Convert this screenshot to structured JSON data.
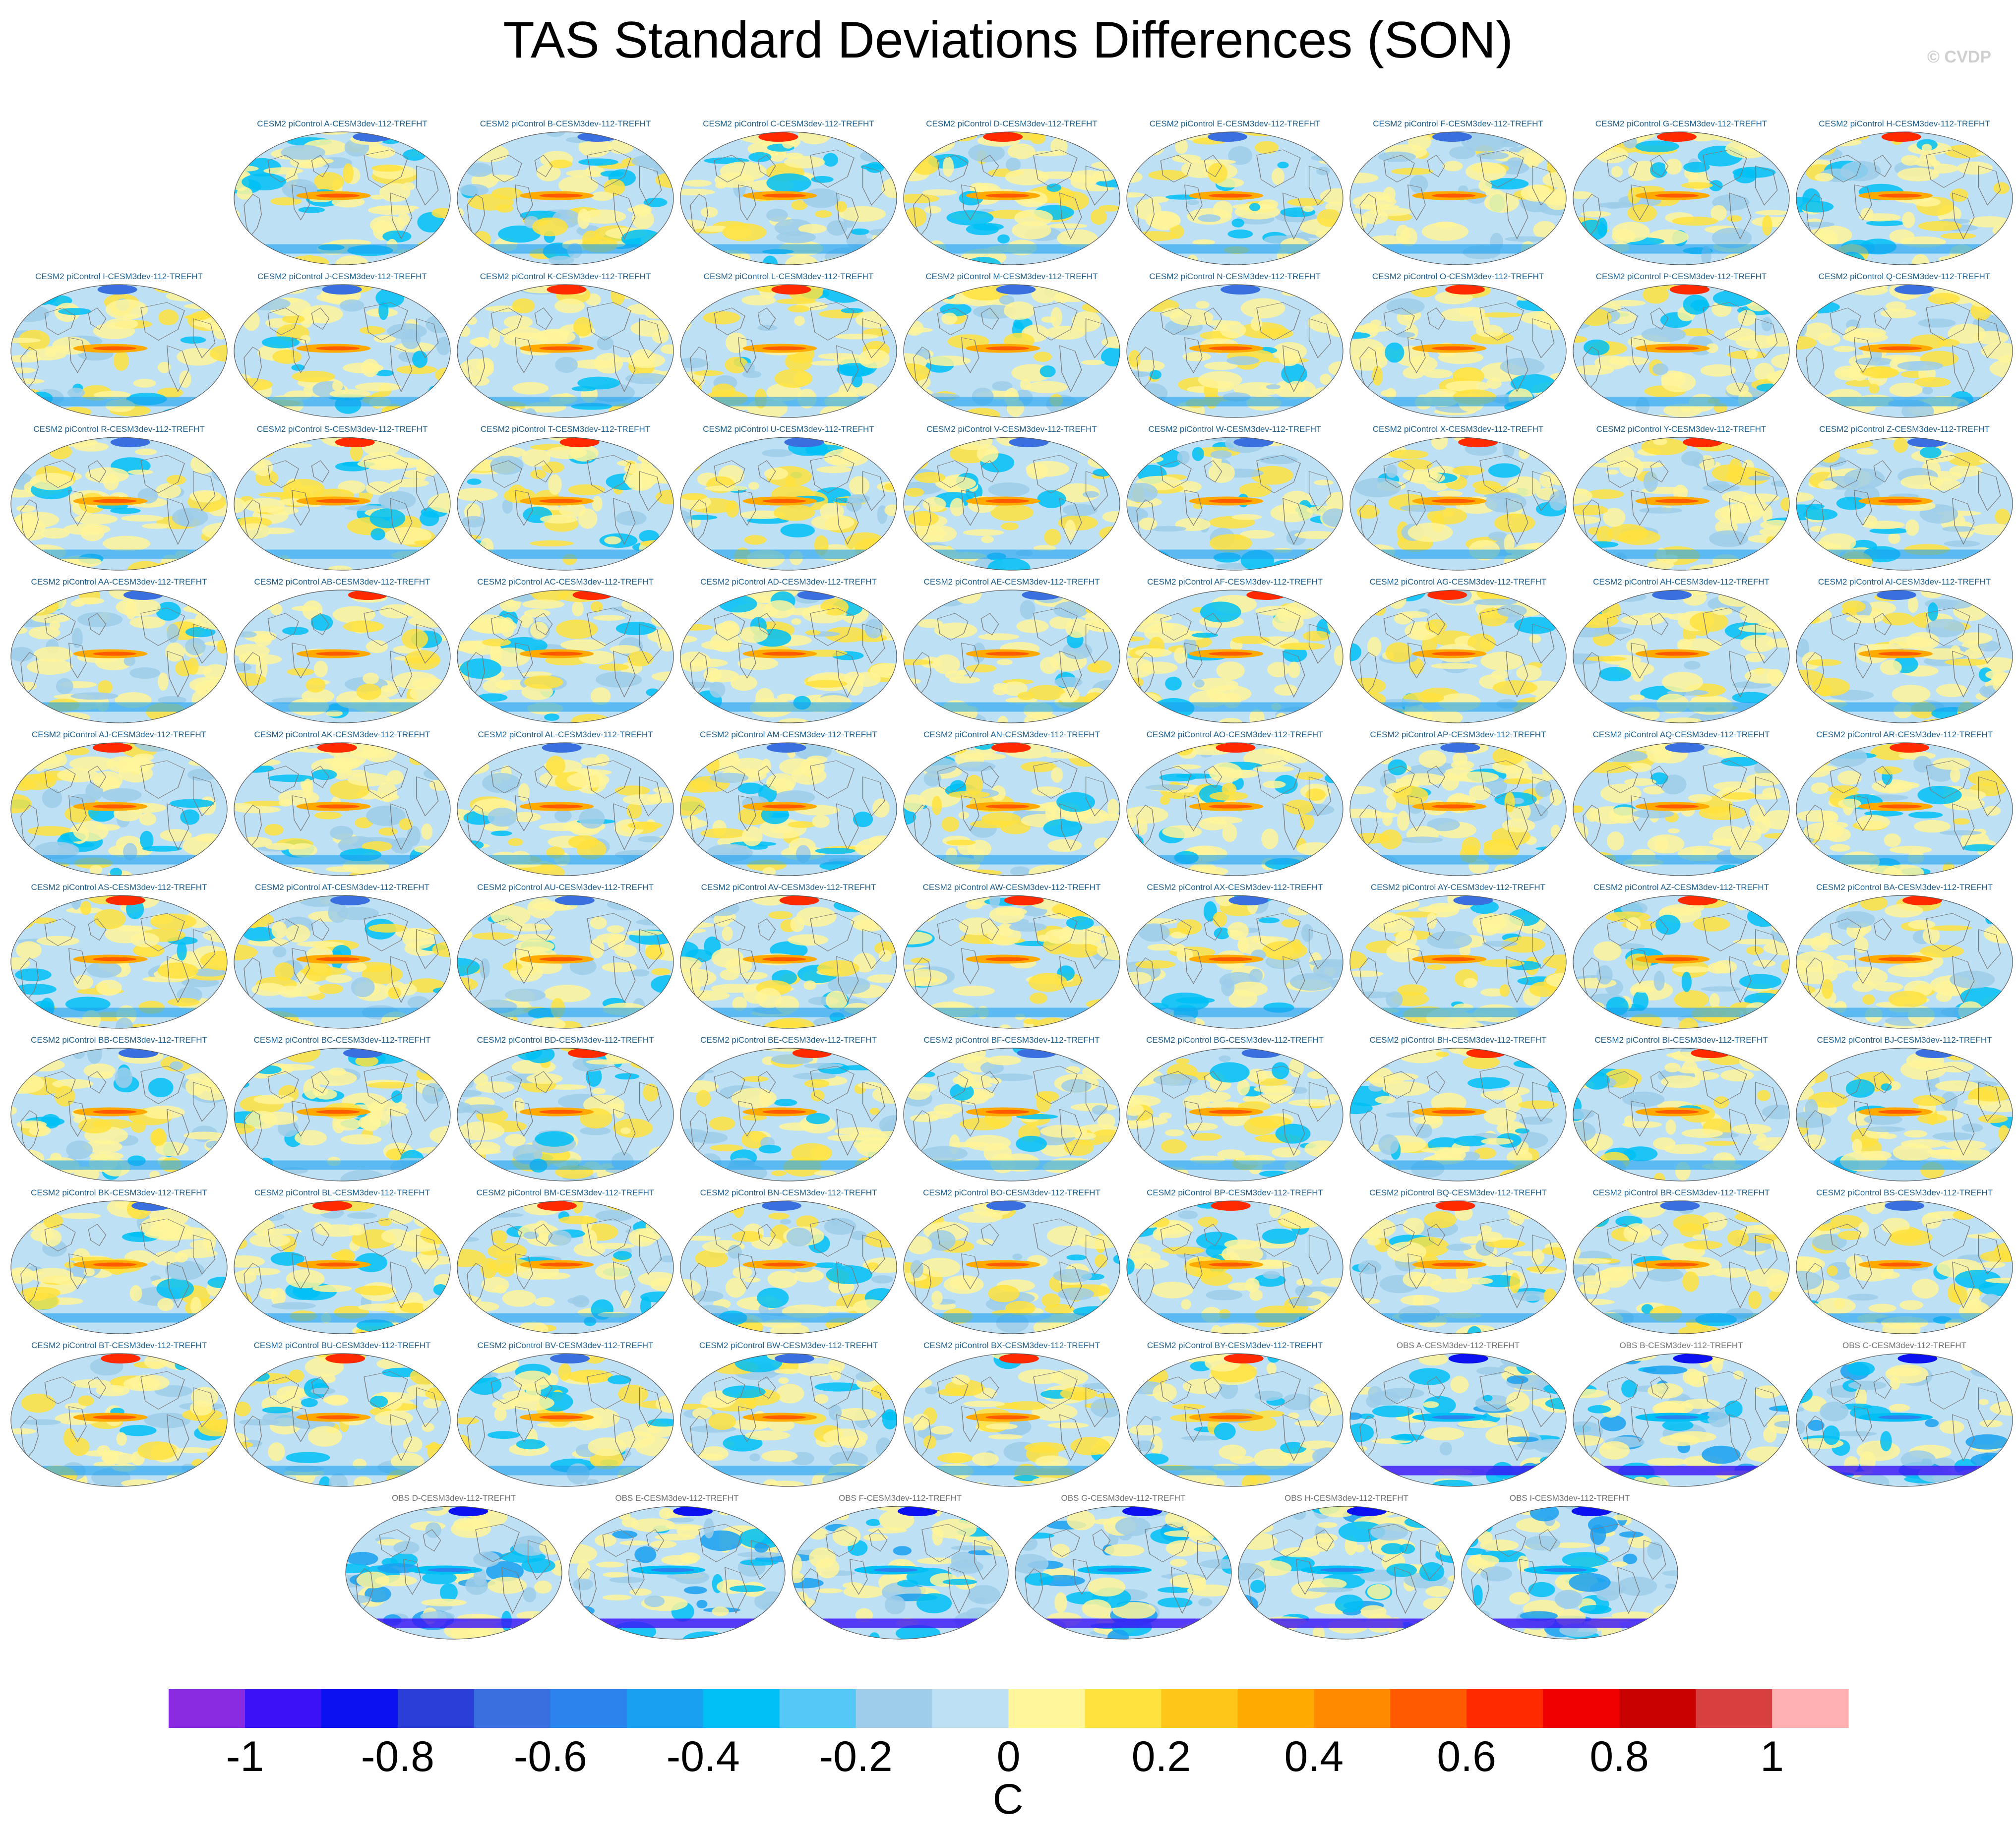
{
  "title": "TAS Standard Deviations Differences (SON)",
  "copyright": "© CVDP",
  "colors": {
    "land_outline": "#7a7a7a",
    "map_border": "#555555",
    "palette": [
      "#8a2be2",
      "#3a12f5",
      "#0a10f0",
      "#2a3fd8",
      "#3a6fe0",
      "#2b84ee",
      "#1aa0f0",
      "#00bff5",
      "#55c7f5",
      "#9dcde9",
      "#bde0f5",
      "#fff59a",
      "#ffe23d",
      "#ffc61a",
      "#ffaa00",
      "#ff8a00",
      "#ff5a00",
      "#ff2a00",
      "#f00000",
      "#c80000",
      "#d84040",
      "#ffb0b0"
    ]
  },
  "chart_data": {
    "type": "map_grid",
    "title": "TAS Standard Deviations Differences (SON)",
    "variable": "TAS",
    "season": "SON",
    "panels": [
      "CESM2 piControl A-CESM3dev-112-TREFHT",
      "CESM2 piControl B-CESM3dev-112-TREFHT",
      "CESM2 piControl C-CESM3dev-112-TREFHT",
      "CESM2 piControl D-CESM3dev-112-TREFHT",
      "CESM2 piControl E-CESM3dev-112-TREFHT",
      "CESM2 piControl F-CESM3dev-112-TREFHT",
      "CESM2 piControl G-CESM3dev-112-TREFHT",
      "CESM2 piControl H-CESM3dev-112-TREFHT",
      "CESM2 piControl I-CESM3dev-112-TREFHT",
      "CESM2 piControl J-CESM3dev-112-TREFHT",
      "CESM2 piControl K-CESM3dev-112-TREFHT",
      "CESM2 piControl L-CESM3dev-112-TREFHT",
      "CESM2 piControl M-CESM3dev-112-TREFHT",
      "CESM2 piControl N-CESM3dev-112-TREFHT",
      "CESM2 piControl O-CESM3dev-112-TREFHT",
      "CESM2 piControl P-CESM3dev-112-TREFHT",
      "CESM2 piControl Q-CESM3dev-112-TREFHT",
      "CESM2 piControl R-CESM3dev-112-TREFHT",
      "CESM2 piControl S-CESM3dev-112-TREFHT",
      "CESM2 piControl T-CESM3dev-112-TREFHT",
      "CESM2 piControl U-CESM3dev-112-TREFHT",
      "CESM2 piControl V-CESM3dev-112-TREFHT",
      "CESM2 piControl W-CESM3dev-112-TREFHT",
      "CESM2 piControl X-CESM3dev-112-TREFHT",
      "CESM2 piControl Y-CESM3dev-112-TREFHT",
      "CESM2 piControl Z-CESM3dev-112-TREFHT",
      "CESM2 piControl AA-CESM3dev-112-TREFHT",
      "CESM2 piControl AB-CESM3dev-112-TREFHT",
      "CESM2 piControl AC-CESM3dev-112-TREFHT",
      "CESM2 piControl AD-CESM3dev-112-TREFHT",
      "CESM2 piControl AE-CESM3dev-112-TREFHT",
      "CESM2 piControl AF-CESM3dev-112-TREFHT",
      "CESM2 piControl AG-CESM3dev-112-TREFHT",
      "CESM2 piControl AH-CESM3dev-112-TREFHT",
      "CESM2 piControl AI-CESM3dev-112-TREFHT",
      "CESM2 piControl AJ-CESM3dev-112-TREFHT",
      "CESM2 piControl AK-CESM3dev-112-TREFHT",
      "CESM2 piControl AL-CESM3dev-112-TREFHT",
      "CESM2 piControl AM-CESM3dev-112-TREFHT",
      "CESM2 piControl AN-CESM3dev-112-TREFHT",
      "CESM2 piControl AO-CESM3dev-112-TREFHT",
      "CESM2 piControl AP-CESM3dev-112-TREFHT",
      "CESM2 piControl AQ-CESM3dev-112-TREFHT",
      "CESM2 piControl AR-CESM3dev-112-TREFHT",
      "CESM2 piControl AS-CESM3dev-112-TREFHT",
      "CESM2 piControl AT-CESM3dev-112-TREFHT",
      "CESM2 piControl AU-CESM3dev-112-TREFHT",
      "CESM2 piControl AV-CESM3dev-112-TREFHT",
      "CESM2 piControl AW-CESM3dev-112-TREFHT",
      "CESM2 piControl AX-CESM3dev-112-TREFHT",
      "CESM2 piControl AY-CESM3dev-112-TREFHT",
      "CESM2 piControl AZ-CESM3dev-112-TREFHT",
      "CESM2 piControl BA-CESM3dev-112-TREFHT",
      "CESM2 piControl BB-CESM3dev-112-TREFHT",
      "CESM2 piControl BC-CESM3dev-112-TREFHT",
      "CESM2 piControl BD-CESM3dev-112-TREFHT",
      "CESM2 piControl BE-CESM3dev-112-TREFHT",
      "CESM2 piControl BF-CESM3dev-112-TREFHT",
      "CESM2 piControl BG-CESM3dev-112-TREFHT",
      "CESM2 piControl BH-CESM3dev-112-TREFHT",
      "CESM2 piControl BI-CESM3dev-112-TREFHT",
      "CESM2 piControl BJ-CESM3dev-112-TREFHT",
      "CESM2 piControl BK-CESM3dev-112-TREFHT",
      "CESM2 piControl BL-CESM3dev-112-TREFHT",
      "CESM2 piControl BM-CESM3dev-112-TREFHT",
      "CESM2 piControl BN-CESM3dev-112-TREFHT",
      "CESM2 piControl BO-CESM3dev-112-TREFHT",
      "CESM2 piControl BP-CESM3dev-112-TREFHT",
      "CESM2 piControl BQ-CESM3dev-112-TREFHT",
      "CESM2 piControl BR-CESM3dev-112-TREFHT",
      "CESM2 piControl BS-CESM3dev-112-TREFHT",
      "CESM2 piControl BT-CESM3dev-112-TREFHT",
      "CESM2 piControl BU-CESM3dev-112-TREFHT",
      "CESM2 piControl BV-CESM3dev-112-TREFHT",
      "CESM2 piControl BW-CESM3dev-112-TREFHT",
      "CESM2 piControl BX-CESM3dev-112-TREFHT",
      "CESM2 piControl BY-CESM3dev-112-TREFHT",
      "OBS A-CESM3dev-112-TREFHT",
      "OBS B-CESM3dev-112-TREFHT",
      "OBS C-CESM3dev-112-TREFHT",
      "OBS D-CESM3dev-112-TREFHT",
      "OBS E-CESM3dev-112-TREFHT",
      "OBS F-CESM3dev-112-TREFHT",
      "OBS G-CESM3dev-112-TREFHT",
      "OBS H-CESM3dev-112-TREFHT",
      "OBS I-CESM3dev-112-TREFHT"
    ],
    "rows": [
      8,
      9,
      9,
      9,
      9,
      9,
      9,
      9,
      9,
      6
    ],
    "colorbar": {
      "levels": [
        -1.1,
        -1,
        -0.9,
        -0.8,
        -0.7,
        -0.6,
        -0.5,
        -0.4,
        -0.3,
        -0.2,
        -0.1,
        0,
        0.1,
        0.2,
        0.3,
        0.4,
        0.5,
        0.6,
        0.7,
        0.8,
        0.9,
        1,
        1.1
      ],
      "tick_labels": [
        "-1",
        "-0.8",
        "-0.6",
        "-0.4",
        "-0.2",
        "0",
        "0.2",
        "0.4",
        "0.6",
        "0.8",
        "1"
      ],
      "tick_values": [
        -1,
        -0.8,
        -0.6,
        -0.4,
        -0.2,
        0,
        0.2,
        0.4,
        0.6,
        0.8,
        1
      ],
      "units": "C"
    }
  }
}
